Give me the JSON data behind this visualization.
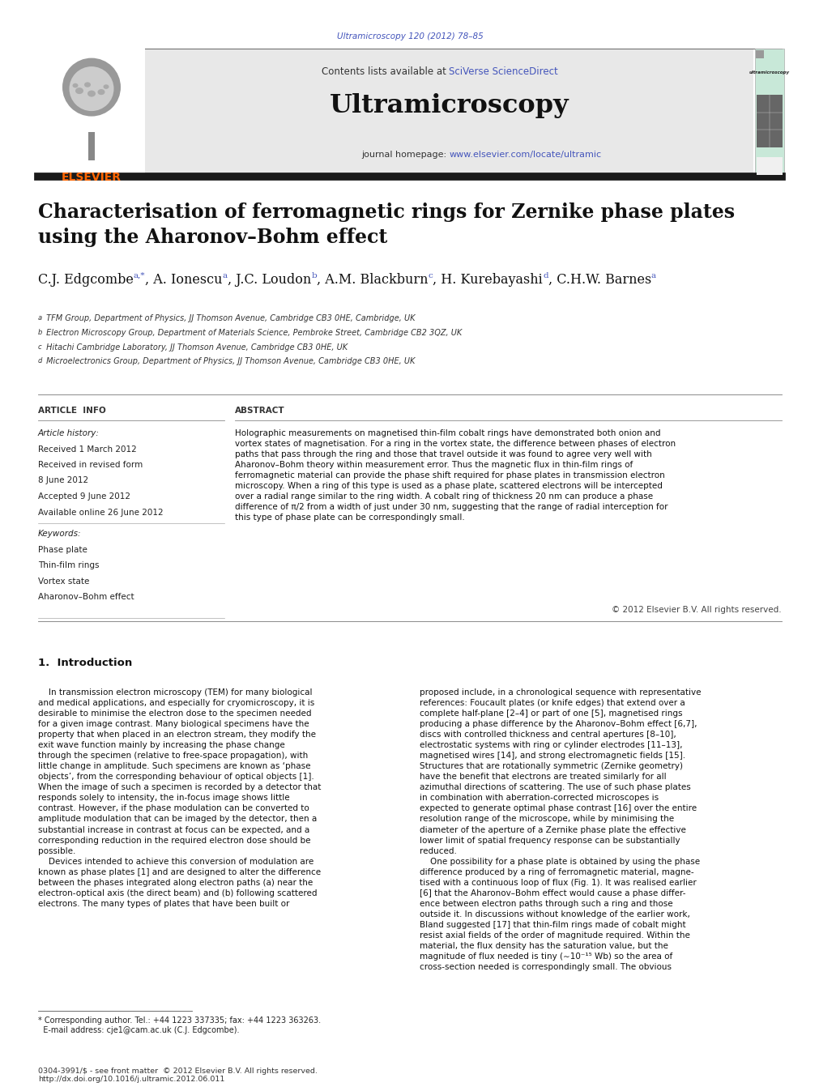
{
  "page_width": 9.92,
  "page_height": 13.23,
  "bg_color": "#ffffff",
  "journal_ref": "Ultramicroscopy 120 (2012) 78–85",
  "journal_ref_color": "#4455bb",
  "journal_name": "Ultramicroscopy",
  "sciverse_color": "#4455bb",
  "journal_url": "www.elsevier.com/locate/ultramic",
  "journal_url_color": "#4455bb",
  "header_bg": "#e8e8e8",
  "article_title": "Characterisation of ferromagnetic rings for Zernike phase plates\nusing the Aharonov–Bohm effect",
  "author_data": [
    [
      "C.J. Edgcombe",
      "a,*"
    ],
    [
      ", A. Ionescu",
      "a"
    ],
    [
      ", J.C. Loudon",
      "b"
    ],
    [
      ", A.M. Blackburn",
      "c"
    ],
    [
      ", H. Kurebayashi",
      "d"
    ],
    [
      ", C.H.W. Barnes",
      "a"
    ]
  ],
  "affiliations": [
    "a TFM Group, Department of Physics, JJ Thomson Avenue, Cambridge CB3 0HE, Cambridge, UK",
    "b Electron Microscopy Group, Department of Materials Science, Pembroke Street, Cambridge CB2 3QZ, UK",
    "c Hitachi Cambridge Laboratory, JJ Thomson Avenue, Cambridge CB3 0HE, UK",
    "d Microelectronics Group, Department of Physics, JJ Thomson Avenue, Cambridge CB3 0HE, UK"
  ],
  "article_info_title": "ARTICLE  INFO",
  "abstract_title": "ABSTRACT",
  "article_history_label": "Article history:",
  "article_history": [
    "Received 1 March 2012",
    "Received in revised form",
    "8 June 2012",
    "Accepted 9 June 2012",
    "Available online 26 June 2012"
  ],
  "keywords_label": "Keywords:",
  "keywords": [
    "Phase plate",
    "Thin-film rings",
    "Vortex state",
    "Aharonov–Bohm effect"
  ],
  "abstract_text": "Holographic measurements on magnetised thin-film cobalt rings have demonstrated both onion and\nvortex states of magnetisation. For a ring in the vortex state, the difference between phases of electron\npaths that pass through the ring and those that travel outside it was found to agree very well with\nAharonov–Bohm theory within measurement error. Thus the magnetic flux in thin-film rings of\nferromagnetic material can provide the phase shift required for phase plates in transmission electron\nmicroscopy. When a ring of this type is used as a phase plate, scattered electrons will be intercepted\nover a radial range similar to the ring width. A cobalt ring of thickness 20 nm can produce a phase\ndifference of π/2 from a width of just under 30 nm, suggesting that the range of radial interception for\nthis type of phase plate can be correspondingly small.",
  "copyright_text": "© 2012 Elsevier B.V. All rights reserved.",
  "section1_title": "1.  Introduction",
  "intro_col1": "    In transmission electron microscopy (TEM) for many biological\nand medical applications, and especially for cryomicroscopy, it is\ndesirable to minimise the electron dose to the specimen needed\nfor a given image contrast. Many biological specimens have the\nproperty that when placed in an electron stream, they modify the\nexit wave function mainly by increasing the phase change\nthrough the specimen (relative to free-space propagation), with\nlittle change in amplitude. Such specimens are known as ‘phase\nobjects’, from the corresponding behaviour of optical objects [1].\nWhen the image of such a specimen is recorded by a detector that\nresponds solely to intensity, the in-focus image shows little\ncontrast. However, if the phase modulation can be converted to\namplitude modulation that can be imaged by the detector, then a\nsubstantial increase in contrast at focus can be expected, and a\ncorresponding reduction in the required electron dose should be\npossible.\n    Devices intended to achieve this conversion of modulation are\nknown as phase plates [1] and are designed to alter the difference\nbetween the phases integrated along electron paths (a) near the\nelectron-optical axis (the direct beam) and (b) following scattered\nelectrons. The many types of plates that have been built or",
  "intro_col2": "proposed include, in a chronological sequence with representative\nreferences: Foucault plates (or knife edges) that extend over a\ncomplete half-plane [2–4] or part of one [5], magnetised rings\nproducing a phase difference by the Aharonov–Bohm effect [6,7],\ndiscs with controlled thickness and central apertures [8–10],\nelectrostatic systems with ring or cylinder electrodes [11–13],\nmagnetised wires [14], and strong electromagnetic fields [15].\nStructures that are rotationally symmetric (Zernike geometry)\nhave the benefit that electrons are treated similarly for all\nazimuthal directions of scattering. The use of such phase plates\nin combination with aberration-corrected microscopes is\nexpected to generate optimal phase contrast [16] over the entire\nresolution range of the microscope, while by minimising the\ndiameter of the aperture of a Zernike phase plate the effective\nlower limit of spatial frequency response can be substantially\nreduced.\n    One possibility for a phase plate is obtained by using the phase\ndifference produced by a ring of ferromagnetic material, magne-\ntised with a continuous loop of flux (Fig. 1). It was realised earlier\n[6] that the Aharonov–Bohm effect would cause a phase differ-\nence between electron paths through such a ring and those\noutside it. In discussions without knowledge of the earlier work,\nBland suggested [17] that thin-film rings made of cobalt might\nresist axial fields of the order of magnitude required. Within the\nmaterial, the flux density has the saturation value, but the\nmagnitude of flux needed is tiny (∼10⁻¹⁵ Wb) so the area of\ncross-section needed is correspondingly small. The obvious",
  "footnote_text": "* Corresponding author. Tel.: +44 1223 337335; fax: +44 1223 363263.\n  E-mail address: cje1@cam.ac.uk (C.J. Edgcombe).",
  "footer_text": "0304-3991/$ - see front matter  © 2012 Elsevier B.V. All rights reserved.\nhttp://dx.doi.org/10.1016/j.ultramic.2012.06.011",
  "top_bar_color": "#1a1a1a",
  "author_color": "#111111",
  "sup_color": "#4455bb"
}
